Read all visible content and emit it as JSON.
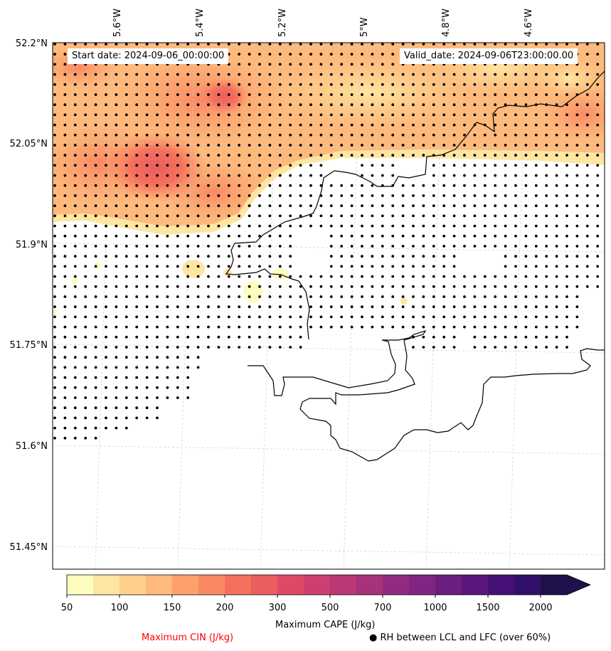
{
  "map": {
    "start_date": "Start date: 2024-09-06_00:00:00",
    "valid_date": "Valid_date: 2024-09-06T23:00:00.00",
    "lon_ticks": [
      "5.6°W",
      "5.4°W",
      "5.2°W",
      "5°W",
      "4.8°W",
      "4.6°W"
    ],
    "lat_ticks": [
      "52.2°N",
      "52.05°N",
      "51.9°N",
      "51.75°N",
      "51.6°N",
      "51.45°N"
    ],
    "dot_color": "#000000",
    "coastline_color": "#000000",
    "gridline_color": "#cccccc"
  },
  "colorbar": {
    "label": "Maximum CAPE (J/kg)",
    "tick_labels": [
      "50",
      "100",
      "150",
      "200",
      "300",
      "500",
      "700",
      "1000",
      "1500",
      "2000"
    ],
    "colors": [
      "#fdfdc0",
      "#fee6a2",
      "#fed08c",
      "#feba7c",
      "#fca16c",
      "#fa8863",
      "#f5705c",
      "#ea5e5f",
      "#de4967",
      "#cd3f71",
      "#ba3876",
      "#a6327c",
      "#922b80",
      "#802582",
      "#6c1e80",
      "#5a167d",
      "#461177",
      "#31106a",
      "#20114b"
    ]
  },
  "legend": {
    "cin_label": "Maximum CIN (J/kg)",
    "cin_color": "#ff0000",
    "rh_symbol": "●",
    "rh_label": "RH between LCL and LFC (over 60%)"
  }
}
